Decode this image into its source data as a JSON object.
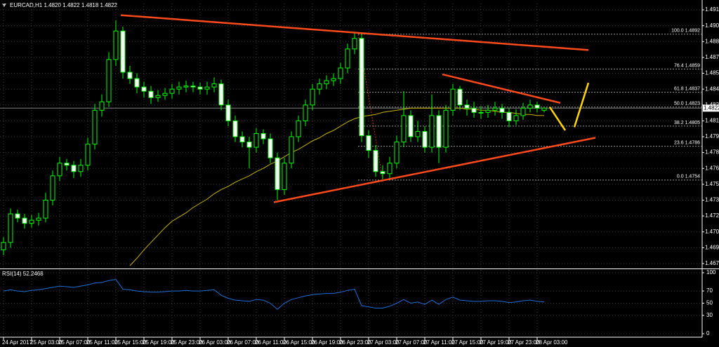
{
  "chart_data": {
    "type": "candlestick",
    "title": "EURCAD,H1  1.4820 1.4822 1.4818 1.4822",
    "categories": [
      "24 Apr 2017",
      null,
      null,
      null,
      "25 Apr 03:00",
      null,
      null,
      null,
      "25 Apr 07:00",
      null,
      null,
      null,
      "25 Apr 11:00",
      null,
      null,
      null,
      "25 Apr 15:00",
      null,
      null,
      null,
      "25 Apr 19:00",
      null,
      null,
      null,
      "25 Apr 23:00",
      null,
      null,
      null,
      "26 Apr 03:00",
      null,
      null,
      null,
      "26 Apr 07:00",
      null,
      null,
      null,
      "26 Apr 11:00",
      null,
      null,
      null,
      "26 Apr 15:00",
      null,
      null,
      null,
      "26 Apr 19:00",
      null,
      null,
      null,
      "26 Apr 23:00",
      null,
      null,
      null,
      "27 Apr 03:00",
      null,
      null,
      null,
      "27 Apr 07:00",
      null,
      null,
      null,
      "27 Apr 11:00",
      null,
      null,
      null,
      "27 Apr 15:00",
      null,
      null,
      null,
      "27 Apr 19:00",
      null,
      null,
      null,
      "27 Apr 23:00",
      null,
      null,
      null,
      "28 Apr 03:00",
      null
    ],
    "open": [
      1.4688,
      1.4695,
      1.4722,
      1.4718,
      1.4713,
      1.4716,
      1.4718,
      1.4735,
      1.4758,
      1.477,
      1.4768,
      1.4762,
      1.4768,
      1.4788,
      1.482,
      1.4828,
      1.4868,
      1.4895,
      1.4856,
      1.485,
      1.4842,
      1.4838,
      1.4832,
      1.4834,
      1.4836,
      1.484,
      1.4842,
      1.4843,
      1.4842,
      1.484,
      1.4842,
      1.4845,
      1.4825,
      1.481,
      1.4795,
      1.479,
      1.4785,
      1.4798,
      1.4793,
      1.4775,
      1.4745,
      1.477,
      1.4795,
      1.481,
      1.4825,
      1.484,
      1.4845,
      1.4848,
      1.485,
      1.486,
      1.4878,
      1.4888,
      1.4796,
      1.4782,
      1.4762,
      1.476,
      1.477,
      1.479,
      1.4815,
      1.4795,
      1.48,
      1.4785,
      1.4815,
      1.4785,
      1.482,
      1.484,
      1.4825,
      1.4822,
      1.4818,
      1.4818,
      1.482,
      1.4822,
      1.4818,
      1.481,
      1.4815,
      1.4822,
      1.4825,
      1.482
    ],
    "high": [
      1.47,
      1.4727,
      1.4726,
      1.4722,
      1.4721,
      1.4723,
      1.4742,
      1.4763,
      1.4776,
      1.4774,
      1.4772,
      1.4774,
      1.4794,
      1.4826,
      1.4835,
      1.4875,
      1.4905,
      1.4899,
      1.4862,
      1.4855,
      1.4847,
      1.4843,
      1.4839,
      1.4841,
      1.4845,
      1.4847,
      1.4848,
      1.4847,
      1.4846,
      1.4847,
      1.4851,
      1.4849,
      1.483,
      1.4815,
      1.48,
      1.4795,
      1.4803,
      1.4802,
      1.4798,
      1.478,
      1.4775,
      1.48,
      1.4815,
      1.483,
      1.4845,
      1.485,
      1.4853,
      1.4855,
      1.4865,
      1.4883,
      1.4893,
      1.4892,
      1.4801,
      1.4787,
      1.4768,
      1.4776,
      1.4796,
      1.4838,
      1.482,
      1.481,
      1.4805,
      1.4835,
      1.482,
      1.4825,
      1.4845,
      1.4843,
      1.483,
      1.4828,
      1.4824,
      1.4825,
      1.4828,
      1.4826,
      1.4822,
      1.4821,
      1.4827,
      1.483,
      1.4828,
      1.4822
    ],
    "low": [
      1.4683,
      1.469,
      1.4714,
      1.4708,
      1.4709,
      1.4711,
      1.4714,
      1.473,
      1.4753,
      1.4763,
      1.4756,
      1.4757,
      1.4763,
      1.4783,
      1.4814,
      1.4823,
      1.4862,
      1.485,
      1.4845,
      1.4836,
      1.4832,
      1.4826,
      1.4828,
      1.483,
      1.4831,
      1.4835,
      1.4837,
      1.4837,
      1.4835,
      1.4835,
      1.4837,
      1.482,
      1.4805,
      1.479,
      1.4785,
      1.4765,
      1.478,
      1.4788,
      1.477,
      1.4735,
      1.474,
      1.4765,
      1.479,
      1.4805,
      1.482,
      1.4835,
      1.484,
      1.4843,
      1.4845,
      1.4855,
      1.4873,
      1.479,
      1.4775,
      1.4757,
      1.4755,
      1.4755,
      1.4765,
      1.4785,
      1.479,
      1.479,
      1.478,
      1.478,
      1.477,
      1.478,
      1.4815,
      1.482,
      1.4815,
      1.4813,
      1.4812,
      1.4813,
      1.4815,
      1.4812,
      1.4804,
      1.4806,
      1.4811,
      1.4818,
      1.4818,
      1.4818
    ],
    "close": [
      1.4695,
      1.4722,
      1.4718,
      1.4713,
      1.4716,
      1.4718,
      1.4735,
      1.4758,
      1.477,
      1.4768,
      1.4762,
      1.4768,
      1.4788,
      1.482,
      1.4828,
      1.4868,
      1.4895,
      1.4856,
      1.485,
      1.4842,
      1.4838,
      1.4832,
      1.4834,
      1.4836,
      1.484,
      1.4842,
      1.4843,
      1.4842,
      1.484,
      1.4842,
      1.4845,
      1.4825,
      1.481,
      1.4795,
      1.479,
      1.4785,
      1.4798,
      1.4793,
      1.4775,
      1.4745,
      1.477,
      1.4795,
      1.481,
      1.4825,
      1.484,
      1.4845,
      1.4848,
      1.485,
      1.486,
      1.4878,
      1.4888,
      1.4796,
      1.4782,
      1.4762,
      1.476,
      1.477,
      1.479,
      1.4815,
      1.4795,
      1.48,
      1.4785,
      1.4815,
      1.4785,
      1.482,
      1.484,
      1.4825,
      1.4822,
      1.4818,
      1.4818,
      1.482,
      1.4822,
      1.4818,
      1.481,
      1.4815,
      1.4822,
      1.4825,
      1.4822,
      1.4822
    ],
    "up_color": "#000000",
    "down_color": "#ffffff",
    "wick_color": "#00ff00",
    "moving_average": {
      "color": "#c8b400",
      "values": [
        null,
        null,
        null,
        null,
        null,
        null,
        null,
        null,
        null,
        null,
        null,
        null,
        null,
        null,
        null,
        null,
        null,
        null,
        1.4673,
        1.468,
        1.4688,
        1.4695,
        1.4702,
        1.4709,
        1.4715,
        1.4719,
        1.4723,
        1.4728,
        1.4732,
        1.4736,
        1.4741,
        1.4745,
        1.4748,
        1.4752,
        1.4755,
        1.4758,
        1.4762,
        1.4765,
        1.4769,
        1.4772,
        1.4776,
        1.478,
        1.4783,
        1.4787,
        1.4791,
        1.4794,
        1.4798,
        1.4801,
        1.4805,
        1.4809,
        1.4812,
        1.4814,
        1.4815,
        1.4816,
        1.4818,
        1.4819,
        1.482,
        1.4821,
        1.4822,
        1.4822,
        1.4822,
        1.4822,
        1.4822,
        1.4822,
        1.4822,
        1.4822,
        1.4821,
        1.4821,
        1.482,
        1.482,
        1.4819,
        1.4818,
        1.4818,
        1.4817,
        1.4816,
        1.4816,
        1.4815,
        1.4815
      ]
    },
    "xlim": [
      -0.5,
      99.5
    ],
    "ylim": [
      1.4671,
      1.4921
    ],
    "yticks": [
      1.4915,
      {
        "value": 1.49,
        "label": "1.4900"
      },
      1.4885,
      {
        "value": 1.487,
        "label": "1.4870"
      },
      1.4855,
      {
        "value": 1.484,
        "label": "1.4840"
      },
      1.4825,
      {
        "value": 1.481,
        "label": "1.4810"
      },
      1.4795,
      {
        "value": 1.478,
        "label": "1.4780"
      },
      1.4765,
      {
        "value": 1.475,
        "label": "1.4750"
      },
      1.4735,
      {
        "value": 1.472,
        "label": "1.4720"
      },
      1.4705,
      {
        "value": 1.469,
        "label": "1.4690"
      },
      1.4675
    ],
    "grid": true,
    "current_price": 1.4822,
    "trend_lines": [
      {
        "color": "#ff4a1c",
        "start": [
          16.7,
          1.491
        ],
        "end": [
          83.3,
          1.4877
        ]
      },
      {
        "color": "#ff4a1c",
        "start": [
          62.5,
          1.4854
        ],
        "end": [
          79.3,
          1.4827
        ]
      },
      {
        "color": "#ff4a1c",
        "start": [
          38.5,
          1.4733
        ],
        "end": [
          84.3,
          1.4794
        ]
      },
      {
        "color": "#ffd700",
        "start": [
          77.8,
          1.4823
        ],
        "end": [
          80.0,
          1.4801
        ]
      },
      {
        "color": "#ffd700",
        "start": [
          81.3,
          1.4804
        ],
        "end": [
          83.3,
          1.4846
        ]
      }
    ],
    "fibonacci": {
      "anchor": [
        [
          50.5,
          1.4892
        ],
        [
          54.0,
          1.4754
        ]
      ],
      "levels": [
        {
          "label": "100.0 1.4892",
          "price": 1.4892
        },
        {
          "label": "76.4 1.4859",
          "price": 1.4859
        },
        {
          "label": "61.8 1.4837",
          "price": 1.4837
        },
        {
          "label": "50.0 1.4823",
          "price": 1.4823
        },
        {
          "label": "38.2 1.4805",
          "price": 1.4805
        },
        {
          "label": "23.6 1.4786",
          "price": 1.4786
        },
        {
          "label": "0.0 1.4754",
          "price": 1.4754
        }
      ]
    },
    "rsi": {
      "label": "RSI(14) 52.2468",
      "color": "#1e6fd9",
      "values": [
        70,
        72,
        70,
        69,
        71,
        72,
        74,
        76,
        78,
        77,
        76,
        78,
        80,
        83,
        84,
        87,
        89,
        73,
        72,
        70,
        69,
        68,
        68,
        69,
        70,
        70,
        71,
        70,
        70,
        71,
        72,
        63,
        58,
        55,
        54,
        53,
        56,
        55,
        50,
        40,
        50,
        56,
        59,
        62,
        64,
        65,
        66,
        66,
        68,
        71,
        73,
        46,
        44,
        42,
        42,
        45,
        50,
        56,
        50,
        52,
        48,
        55,
        48,
        56,
        60,
        55,
        54,
        53,
        53,
        54,
        54,
        53,
        51,
        52,
        54,
        55,
        53,
        52
      ],
      "ylim": [
        0,
        100
      ],
      "yticks": [
        100,
        70,
        50,
        30,
        0
      ]
    }
  }
}
